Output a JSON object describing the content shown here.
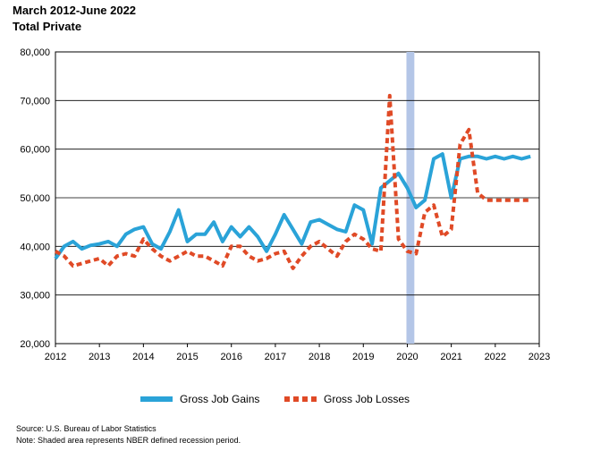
{
  "header": {
    "title": "March 2012-June 2022",
    "subtitle": "Total Private"
  },
  "notes": {
    "source": "Source: U.S. Bureau of Labor Statistics",
    "note": "Note: Shaded area represents NBER defined recession period."
  },
  "colors": {
    "gains": "#2aa3d8",
    "losses": "#e04a26",
    "recession": "#b4c6e7"
  },
  "chart_data": {
    "type": "line",
    "title": "March 2012-June 2022",
    "subtitle": "Total Private",
    "xlabel": "",
    "ylabel": "",
    "xlim": [
      2012,
      2023
    ],
    "ylim": [
      20000,
      80000
    ],
    "x_ticks": [
      "2012",
      "2013",
      "2014",
      "2015",
      "2016",
      "2017",
      "2018",
      "2019",
      "2020",
      "2021",
      "2022",
      "2023"
    ],
    "y_ticks": [
      "20,000",
      "30,000",
      "40,000",
      "50,000",
      "60,000",
      "70,000",
      "80,000"
    ],
    "grid": "horizontal",
    "legend_position": "bottom",
    "recession_band": [
      2019.98,
      2020.16
    ],
    "series": [
      {
        "name": "Gross Job Gains",
        "style": "solid",
        "x": [
          2012.0,
          2012.2,
          2012.4,
          2012.6,
          2012.8,
          2013.0,
          2013.2,
          2013.4,
          2013.6,
          2013.8,
          2014.0,
          2014.2,
          2014.4,
          2014.6,
          2014.8,
          2015.0,
          2015.2,
          2015.4,
          2015.6,
          2015.8,
          2016.0,
          2016.2,
          2016.4,
          2016.6,
          2016.8,
          2017.0,
          2017.2,
          2017.4,
          2017.6,
          2017.8,
          2018.0,
          2018.2,
          2018.4,
          2018.6,
          2018.8,
          2019.0,
          2019.2,
          2019.4,
          2019.6,
          2019.8,
          2020.0,
          2020.2,
          2020.4,
          2020.6,
          2020.8,
          2021.0,
          2021.2,
          2021.4,
          2021.6,
          2021.8,
          2022.0,
          2022.2,
          2022.4,
          2022.6,
          2022.8
        ],
        "values": [
          37500,
          40000,
          41000,
          39500,
          40200,
          40500,
          41000,
          40000,
          42500,
          43500,
          44000,
          40500,
          39500,
          43000,
          47500,
          41000,
          42500,
          42500,
          45000,
          41000,
          44000,
          42000,
          44000,
          42000,
          39000,
          42500,
          46500,
          43500,
          40500,
          45000,
          45500,
          44500,
          43500,
          43000,
          48500,
          47500,
          40500,
          52000,
          53500,
          55000,
          52000,
          48000,
          49500,
          58000,
          59000,
          50000,
          58000,
          58500,
          58500,
          58000,
          58500,
          58000,
          58500,
          58000,
          58500
        ]
      },
      {
        "name": "Gross Job Losses",
        "style": "dashed",
        "x": [
          2012.0,
          2012.2,
          2012.4,
          2012.6,
          2012.8,
          2013.0,
          2013.2,
          2013.4,
          2013.6,
          2013.8,
          2014.0,
          2014.2,
          2014.4,
          2014.6,
          2014.8,
          2015.0,
          2015.2,
          2015.4,
          2015.6,
          2015.8,
          2016.0,
          2016.2,
          2016.4,
          2016.6,
          2016.8,
          2017.0,
          2017.2,
          2017.4,
          2017.6,
          2017.8,
          2018.0,
          2018.2,
          2018.4,
          2018.6,
          2018.8,
          2019.0,
          2019.2,
          2019.4,
          2019.6,
          2019.8,
          2020.0,
          2020.2,
          2020.4,
          2020.6,
          2020.8,
          2021.0,
          2021.2,
          2021.4,
          2021.6,
          2021.8,
          2022.0,
          2022.2,
          2022.4,
          2022.6,
          2022.8
        ],
        "values": [
          39000,
          38000,
          36000,
          36500,
          37000,
          37500,
          36000,
          38000,
          38500,
          38000,
          41500,
          39500,
          38000,
          37000,
          38000,
          39000,
          38000,
          38000,
          37000,
          36000,
          40000,
          40000,
          38000,
          37000,
          37500,
          38500,
          39000,
          35500,
          38000,
          40000,
          41000,
          39500,
          38000,
          41000,
          42500,
          41500,
          39500,
          39000,
          71000,
          41500,
          39000,
          38500,
          47000,
          48500,
          42000,
          43500,
          61000,
          64000,
          51000,
          49500,
          49500,
          49500,
          49500,
          49500,
          49500
        ]
      }
    ]
  }
}
